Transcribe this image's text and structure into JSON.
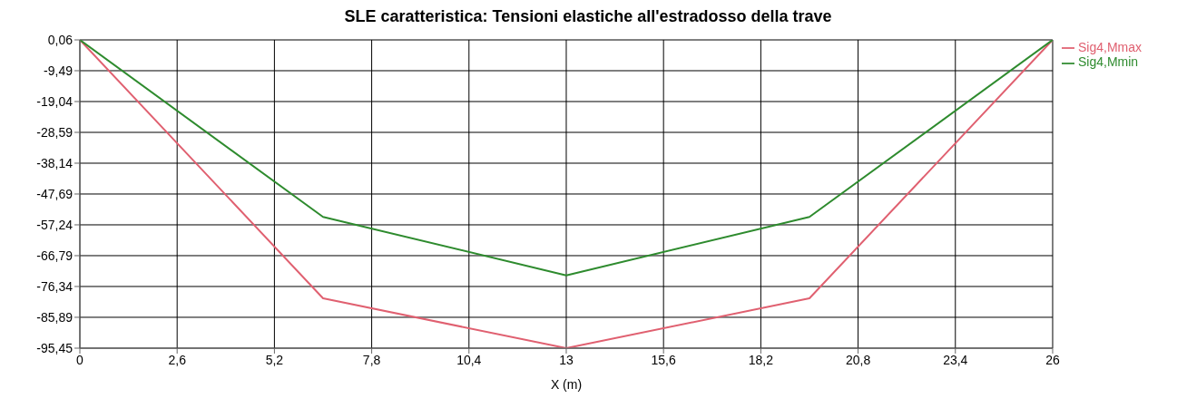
{
  "chart_data": {
    "type": "line",
    "title": "SLE caratteristica: Tensioni elastiche all'estradosso della trave",
    "xlabel": "X (m)",
    "x": [
      0,
      6.5,
      13,
      19.5,
      26
    ],
    "series": [
      {
        "name": "Sig4,Mmax",
        "color": "#e06070",
        "values": [
          0.06,
          -80.0,
          -95.45,
          -80.0,
          0.06
        ]
      },
      {
        "name": "Sig4,Mmin",
        "color": "#2e8b2e",
        "values": [
          0.06,
          -54.8,
          -72.9,
          -54.8,
          0.06
        ]
      }
    ],
    "xlim": [
      0,
      26
    ],
    "xticks": [
      0,
      {
        "value": 2.6,
        "label": "2,6"
      },
      {
        "value": 5.2,
        "label": "5,2"
      },
      {
        "value": 7.8,
        "label": "7,8"
      },
      {
        "value": 10.4,
        "label": "10,4"
      },
      13,
      {
        "value": 15.6,
        "label": "15,6"
      },
      {
        "value": 18.2,
        "label": "18,2"
      },
      {
        "value": 20.8,
        "label": "20,8"
      },
      {
        "value": 23.4,
        "label": "23,4"
      },
      26
    ],
    "ylim": [
      -95.45,
      0.06
    ],
    "yticks": [
      {
        "value": 0.06,
        "label": "0,06"
      },
      {
        "value": -9.49,
        "label": "-9,49"
      },
      {
        "value": -19.04,
        "label": "-19,04"
      },
      {
        "value": -28.59,
        "label": "-28,59"
      },
      {
        "value": -38.14,
        "label": "-38,14"
      },
      {
        "value": -47.69,
        "label": "-47,69"
      },
      {
        "value": -57.24,
        "label": "-57,24"
      },
      {
        "value": -66.79,
        "label": "-66,79"
      },
      {
        "value": -76.34,
        "label": "-76,34"
      },
      {
        "value": -85.89,
        "label": "-85,89"
      },
      {
        "value": -95.45,
        "label": "-95,45"
      }
    ],
    "grid": true,
    "legend": "top right",
    "marker": "none",
    "line_style": "solid"
  }
}
